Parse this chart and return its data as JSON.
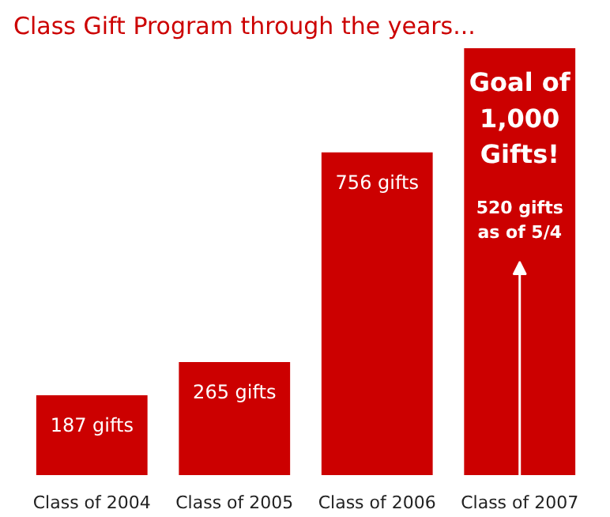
{
  "chart_data": {
    "type": "bar",
    "title": "Class Gift Program through the years...",
    "categories": [
      "Class of 2004",
      "Class of 2005",
      "Class of 2006",
      "Class of 2007"
    ],
    "values": [
      187,
      265,
      756,
      1000
    ],
    "value_labels": [
      "187 gifts",
      "265 gifts",
      "756 gifts",
      "Goal of 1,000 Gifts!"
    ],
    "color": "#cc0000",
    "annotations": [
      "520 gifts as of 5/4"
    ]
  }
}
